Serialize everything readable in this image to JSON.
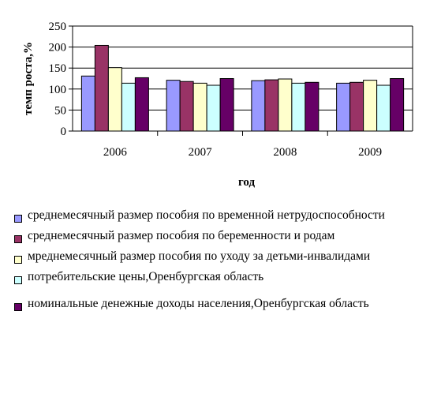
{
  "chart_data": {
    "type": "bar",
    "title": "",
    "xlabel": "год",
    "ylabel": "темп роста,%",
    "ylim": [
      0,
      250
    ],
    "yticks": [
      0,
      50,
      100,
      150,
      200,
      250
    ],
    "grid": "horizontal",
    "legend_position": "bottom",
    "categories": [
      "2006",
      "2007",
      "2008",
      "2009"
    ],
    "series": [
      {
        "name": "среднемесячный размер пособия по временной нетрудоспособности",
        "color": "#9999FF",
        "values": [
          131,
          121,
          120,
          114
        ]
      },
      {
        "name": "среднемесячный размер пособия по беременности и родам",
        "color": "#993366",
        "values": [
          204,
          118,
          122,
          116
        ]
      },
      {
        "name": "мреднемесячный размер пособия по уходу за детьми-инвалидами",
        "color": "#FFFFCC",
        "values": [
          151,
          114,
          124,
          121
        ]
      },
      {
        "name": "потребительские цены,Оренбургская область",
        "color": "#CCFFFF",
        "values": [
          114,
          109,
          114,
          109
        ]
      },
      {
        "name": "номинальные денежные доходы населения,Оренбургская область",
        "color": "#660066",
        "values": [
          127,
          125,
          116,
          125
        ]
      }
    ]
  }
}
